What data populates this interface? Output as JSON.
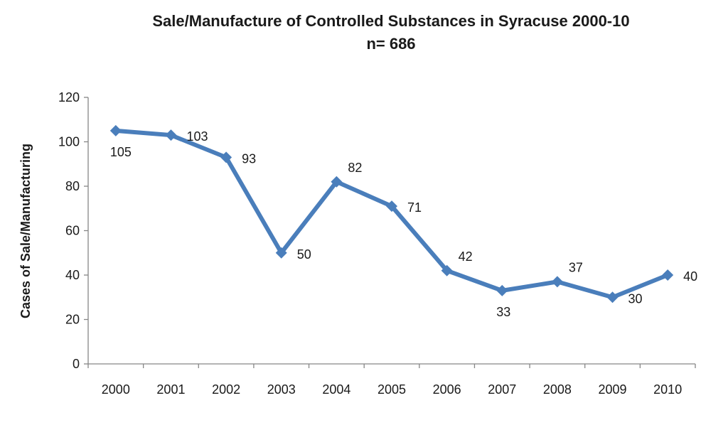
{
  "chart_data": {
    "type": "line",
    "title": "Sale/Manufacture of Controlled Substances in Syracuse 2000-10",
    "subtitle": "n= 686",
    "xlabel": "",
    "ylabel": "Cases of Sale/Manufacturing",
    "categories": [
      "2000",
      "2001",
      "2002",
      "2003",
      "2004",
      "2005",
      "2006",
      "2007",
      "2008",
      "2009",
      "2010"
    ],
    "series": [
      {
        "values": [
          105,
          103,
          93,
          50,
          82,
          71,
          42,
          33,
          37,
          30,
          40
        ]
      }
    ],
    "data_labels": [
      "105",
      "103",
      "93",
      "50",
      "82",
      "71",
      "42",
      "33",
      "37",
      "30",
      "40"
    ],
    "ylim": [
      0,
      120
    ],
    "yticks": [
      0,
      20,
      40,
      60,
      80,
      100,
      120
    ],
    "grid": false,
    "legend": "none",
    "colors": {
      "line": "#4a7ebb",
      "axis": "#868686"
    }
  }
}
